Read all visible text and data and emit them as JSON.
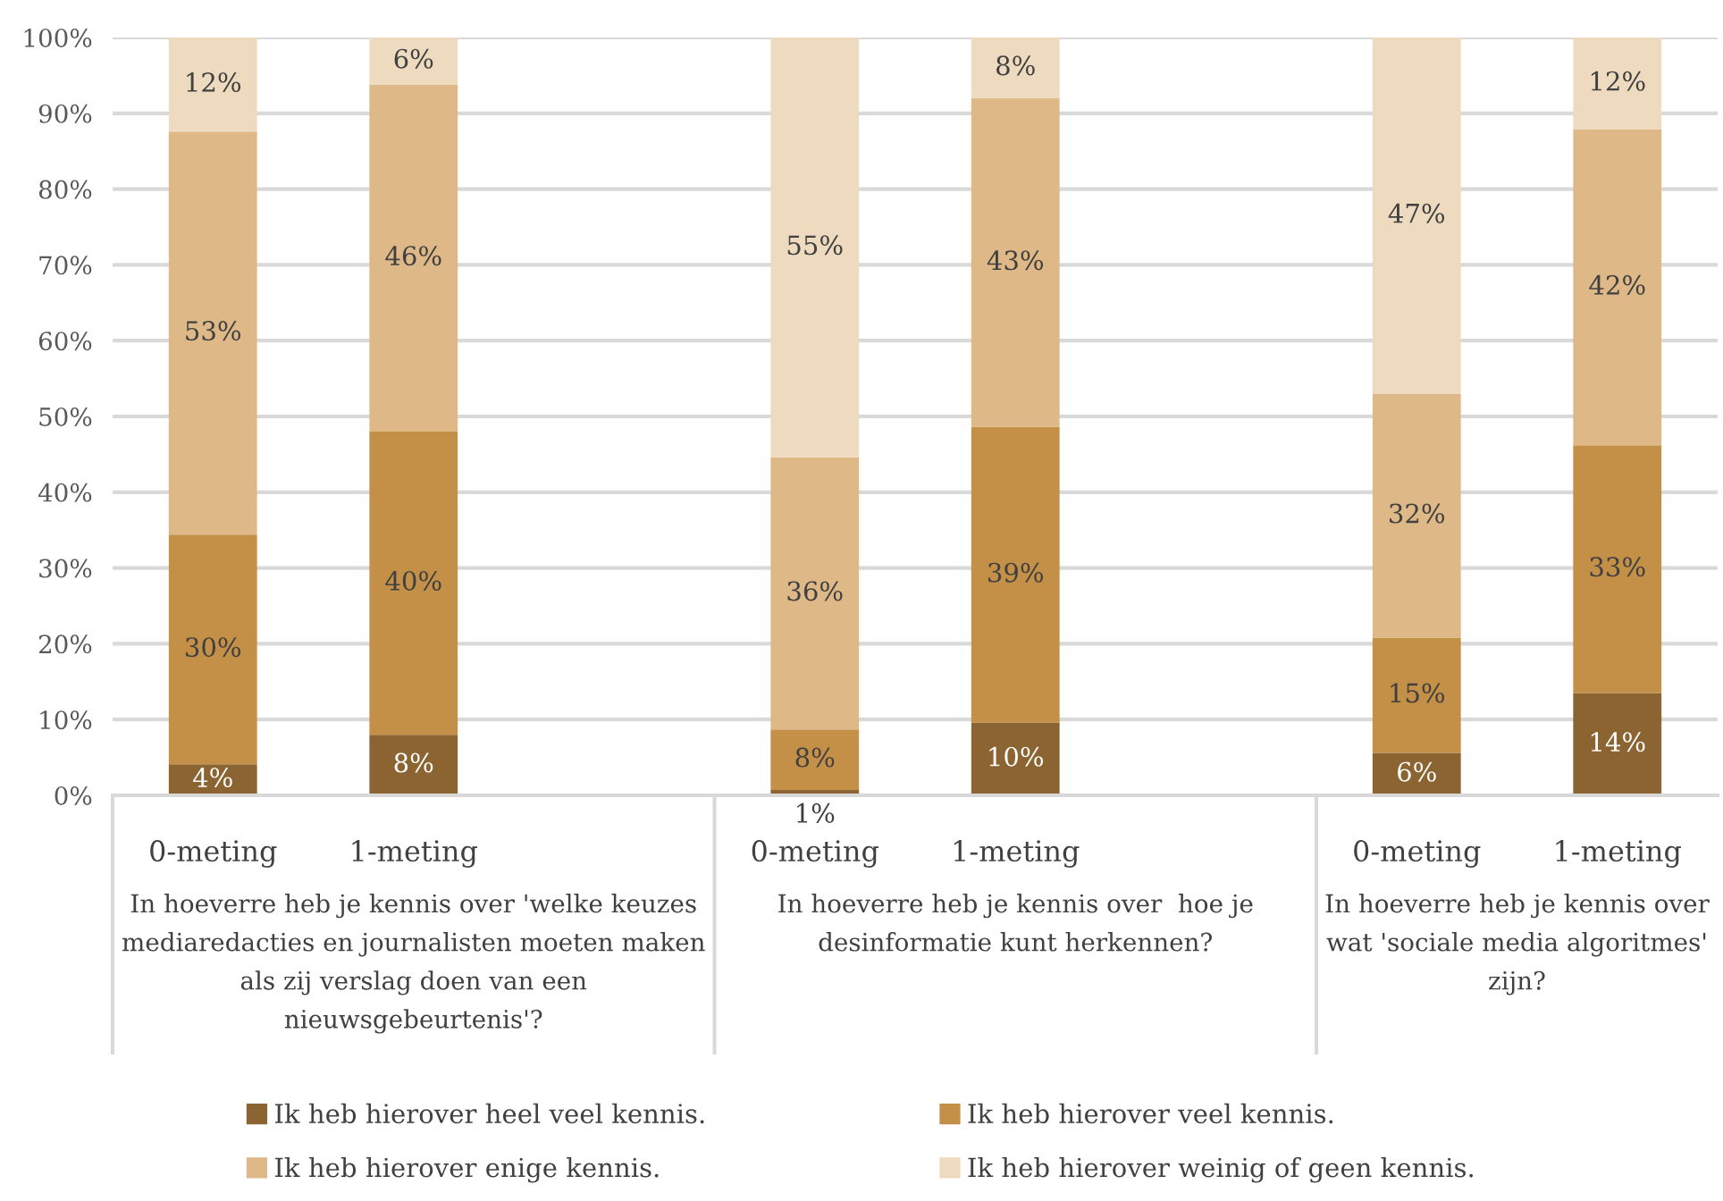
{
  "chart_data": {
    "type": "bar",
    "stacked": true,
    "categories": [
      "0-meting",
      "1-meting",
      null,
      "0-meting",
      "1-meting",
      null,
      "0-meting",
      "1-meting"
    ],
    "series": [
      {
        "name": "Ik heb hierover heel veel kennis.",
        "color": "#8b6431",
        "values": [
          4.1,
          8.0,
          null,
          0.7,
          9.6,
          null,
          5.6,
          13.5
        ],
        "value_labels": [
          "4%",
          "8%",
          null,
          "1%",
          "10%",
          null,
          "6%",
          "14%"
        ]
      },
      {
        "name": "Ik heb hierover veel kennis.",
        "color": "#c48f47",
        "values": [
          30.3,
          40.0,
          null,
          8.0,
          39.0,
          null,
          15.2,
          32.7
        ],
        "value_labels": [
          "30%",
          "40%",
          null,
          "8%",
          "39%",
          null,
          "15%",
          "33%"
        ]
      },
      {
        "name": "Ik heb hierover enige kennis.",
        "color": "#deb887",
        "values": [
          53.2,
          45.8,
          null,
          35.9,
          43.4,
          null,
          32.2,
          41.7
        ],
        "value_labels": [
          "53%",
          "46%",
          null,
          "36%",
          "43%",
          null,
          "32%",
          "42%"
        ]
      },
      {
        "name": "Ik heb hierover weinig of geen kennis.",
        "color": "#eedbbf",
        "values": [
          12.4,
          6.2,
          null,
          55.4,
          8.0,
          null,
          47.0,
          12.1
        ],
        "value_labels": [
          "12%",
          "6%",
          null,
          "55%",
          "8%",
          null,
          "47%",
          "12%"
        ]
      }
    ],
    "ylim": [
      0,
      100
    ],
    "yticks": [
      {
        "value": 0,
        "label": "0%"
      },
      {
        "value": 10,
        "label": "10%"
      },
      {
        "value": 20,
        "label": "20%"
      },
      {
        "value": 30,
        "label": "30%"
      },
      {
        "value": 40,
        "label": "40%"
      },
      {
        "value": 50,
        "label": "50%"
      },
      {
        "value": 60,
        "label": "60%"
      },
      {
        "value": 70,
        "label": "70%"
      },
      {
        "value": 80,
        "label": "80%"
      },
      {
        "value": 90,
        "label": "90%"
      },
      {
        "value": 100,
        "label": "100%"
      }
    ],
    "grid": "y",
    "legend": "bottom",
    "annotations": [
      "In hoeverre heb je kennis over 'welke keuzes mediaredacties en journalisten moeten maken als zij verslag doen van een nieuwsgebeurtenis'?",
      "In hoeverre heb je kennis over  hoe je desinformatie kunt herkennen?",
      "In hoeverre heb je kennis over wat 'sociale media algoritmes' zijn?"
    ]
  }
}
